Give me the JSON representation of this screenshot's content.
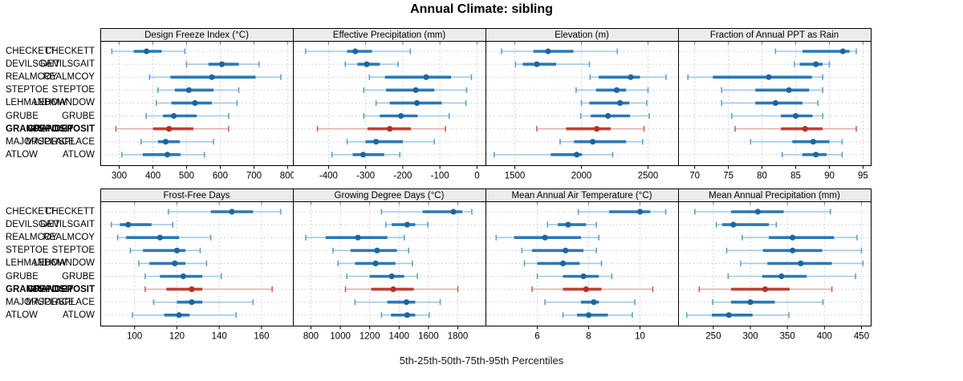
{
  "chart_data": {
    "type": "dot-interval-trellis",
    "title": "Annual Climate: sibling",
    "caption": "5th-25th-50th-75th-95th Percentiles",
    "percentiles": [
      5,
      25,
      50,
      75,
      95
    ],
    "sites": [
      "CHECKETT",
      "DEVILSGAIT",
      "REALMCOY",
      "STEPTOE",
      "LEHMANDOW",
      "GRUBE",
      "GRANDEPOSIT",
      "MAJORSPLACE",
      "ATLOW"
    ],
    "highlight_site": "GRANDEPOSIT",
    "legend_position": "none",
    "grid": "dotted",
    "colors": {
      "normal_thin": "#a3c9e2",
      "normal_cap": "#5aa2d0",
      "normal_thick": "#2979b8",
      "normal_dot": "#1b66a0",
      "highlight_thin": "#e7ada8",
      "highlight_cap": "#cd6057",
      "highlight_thick": "#c04038",
      "highlight_dot": "#bb2c24",
      "strip_bg": "#ececec",
      "panel_bg": "#ffffff",
      "grid_line": "#c9c9c9",
      "border": "#000000"
    },
    "panels": [
      {
        "label": "Design Freeze Index (°C)",
        "xlim": [
          245,
          817
        ],
        "ticks": [
          300,
          400,
          500,
          600,
          700,
          800
        ],
        "values": [
          [
            278,
            343,
            381,
            426,
            495
          ],
          [
            500,
            565,
            605,
            655,
            715
          ],
          [
            390,
            452,
            575,
            705,
            780
          ],
          [
            415,
            465,
            507,
            580,
            655
          ],
          [
            410,
            455,
            525,
            575,
            650
          ],
          [
            380,
            430,
            462,
            530,
            625
          ],
          [
            290,
            400,
            448,
            520,
            625
          ],
          [
            365,
            415,
            438,
            480,
            580
          ],
          [
            308,
            370,
            443,
            482,
            553
          ]
        ]
      },
      {
        "label": "Effective Precipitation (mm)",
        "xlim": [
          -495,
          24
        ],
        "ticks": [
          -400,
          -300,
          -200,
          -100,
          0
        ],
        "values": [
          [
            -462,
            -350,
            -328,
            -283,
            -180
          ],
          [
            -355,
            -322,
            -297,
            -262,
            -213
          ],
          [
            -290,
            -248,
            -137,
            -70,
            -15
          ],
          [
            -305,
            -245,
            -165,
            -115,
            -28
          ],
          [
            -272,
            -235,
            -162,
            -95,
            -30
          ],
          [
            -305,
            -262,
            -205,
            -160,
            -75
          ],
          [
            -430,
            -295,
            -235,
            -178,
            -85
          ],
          [
            -350,
            -300,
            -272,
            -200,
            -115
          ],
          [
            -391,
            -335,
            -307,
            -250,
            -208
          ]
        ]
      },
      {
        "label": "Elevation (m)",
        "xlim": [
          1283,
          2729
        ],
        "ticks": [
          1500,
          2000,
          2500
        ],
        "values": [
          [
            1400,
            1640,
            1750,
            1940,
            2270
          ],
          [
            1505,
            1560,
            1665,
            1810,
            2060
          ],
          [
            2065,
            2130,
            2370,
            2440,
            2635
          ],
          [
            1960,
            2110,
            2265,
            2335,
            2500
          ],
          [
            2000,
            2060,
            2290,
            2360,
            2490
          ],
          [
            1995,
            2070,
            2200,
            2365,
            2510
          ],
          [
            1665,
            1885,
            2115,
            2220,
            2470
          ],
          [
            1840,
            1945,
            2085,
            2335,
            2460
          ],
          [
            1345,
            1770,
            1965,
            2005,
            2235
          ]
        ]
      },
      {
        "label": "Fraction of Annual PPT as Rain",
        "xlim": [
          67.6,
          96.2
        ],
        "ticks": [
          70,
          75,
          80,
          85,
          90,
          95
        ],
        "values": [
          [
            82,
            86,
            92,
            93,
            94
          ],
          [
            84.8,
            85.6,
            88,
            89,
            90
          ],
          [
            69,
            72.7,
            81,
            87.4,
            89
          ],
          [
            74,
            79,
            84,
            87,
            89
          ],
          [
            74,
            79,
            82,
            86,
            88.3
          ],
          [
            75.5,
            82.8,
            85,
            87.5,
            89
          ],
          [
            76,
            82.8,
            86.4,
            89,
            94
          ],
          [
            78.3,
            84.5,
            87.6,
            90,
            91.9
          ],
          [
            83,
            86,
            88,
            89.6,
            91.9
          ]
        ]
      },
      {
        "label": "Frost-Free Days",
        "xlim": [
          84,
          175
        ],
        "ticks": [
          100,
          120,
          140,
          160
        ],
        "values": [
          [
            116,
            136,
            146,
            156,
            169
          ],
          [
            89,
            93,
            97,
            108,
            118
          ],
          [
            92,
            96,
            112,
            121,
            136
          ],
          [
            98,
            104,
            120,
            124,
            131
          ],
          [
            102,
            107,
            119,
            124,
            134
          ],
          [
            105,
            112,
            123,
            132,
            141
          ],
          [
            105,
            115,
            127,
            132,
            165
          ],
          [
            109,
            120,
            127,
            132,
            156
          ],
          [
            99,
            114,
            121,
            126,
            148
          ]
        ]
      },
      {
        "label": "Growing Degree Days (°C)",
        "xlim": [
          680,
          1991
        ],
        "ticks": [
          800,
          1000,
          1200,
          1400,
          1600,
          1800
        ],
        "values": [
          [
            1280,
            1560,
            1770,
            1830,
            1895
          ],
          [
            1310,
            1350,
            1455,
            1510,
            1595
          ],
          [
            765,
            900,
            1120,
            1320,
            1435
          ],
          [
            950,
            1070,
            1250,
            1385,
            1465
          ],
          [
            985,
            1100,
            1240,
            1375,
            1490
          ],
          [
            1045,
            1200,
            1350,
            1435,
            1525
          ],
          [
            1035,
            1210,
            1360,
            1500,
            1800
          ],
          [
            1100,
            1320,
            1450,
            1510,
            1680
          ],
          [
            1280,
            1345,
            1455,
            1510,
            1605
          ]
        ]
      },
      {
        "label": "Mean Annual Air Temperature (°C)",
        "xlim": [
          4.0,
          11.5
        ],
        "ticks": [
          6,
          8,
          10
        ],
        "values": [
          [
            7.6,
            8.8,
            10.0,
            10.4,
            11.0
          ],
          [
            6.4,
            6.8,
            7.2,
            7.9,
            8.3
          ],
          [
            4.4,
            5.1,
            6.3,
            7.7,
            8.4
          ],
          [
            5.4,
            5.8,
            7.1,
            7.8,
            8.3
          ],
          [
            5.5,
            6.0,
            7.0,
            7.65,
            8.5
          ],
          [
            6.0,
            7.0,
            7.8,
            8.4,
            8.9
          ],
          [
            5.8,
            7.0,
            7.9,
            8.5,
            10.5
          ],
          [
            6.3,
            7.7,
            8.2,
            8.4,
            9.8
          ],
          [
            7.0,
            7.55,
            8.0,
            8.75,
            9.7
          ]
        ]
      },
      {
        "label": "Mean Annual Precipitation (mm)",
        "xlim": [
          203,
          463
        ],
        "ticks": [
          250,
          300,
          350,
          400,
          450
        ],
        "values": [
          [
            225,
            274,
            310,
            345,
            408
          ],
          [
            254,
            262,
            277,
            325,
            335
          ],
          [
            289,
            325,
            357,
            413,
            444
          ],
          [
            268,
            317,
            357,
            397,
            450
          ],
          [
            287,
            323,
            368,
            410,
            452
          ],
          [
            270,
            316,
            342,
            376,
            442
          ],
          [
            231,
            274,
            320,
            353,
            410
          ],
          [
            249,
            274,
            300,
            333,
            398
          ],
          [
            214,
            248,
            271,
            303,
            352
          ]
        ]
      }
    ]
  }
}
